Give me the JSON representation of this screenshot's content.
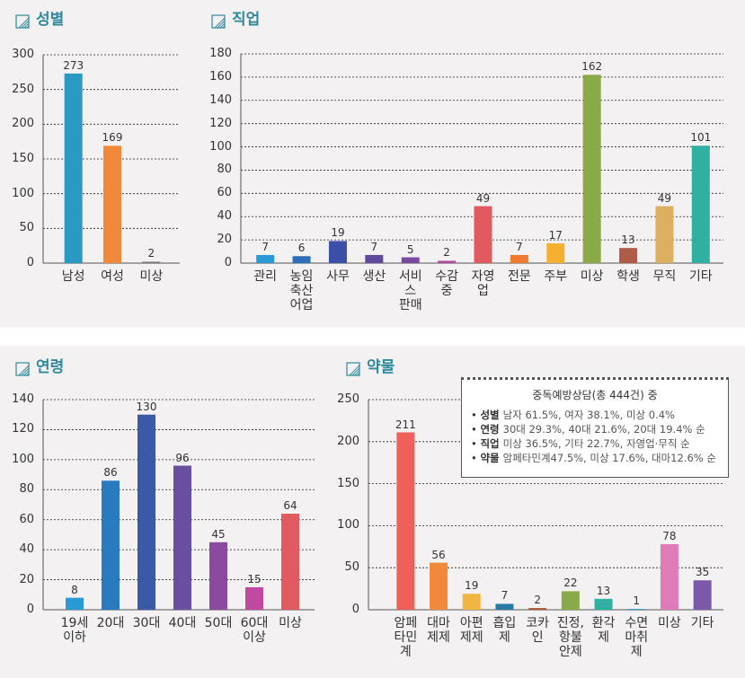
{
  "chart_data": [
    {
      "type": "bar",
      "title": "성별",
      "categories": [
        "남성",
        "여성",
        "미상"
      ],
      "values": [
        273,
        169,
        2
      ],
      "colors": [
        "#2a9ac4",
        "#f08a3a",
        "#7a7a7a"
      ],
      "ylim": [
        0,
        300
      ],
      "yticks": [
        0,
        50,
        100,
        150,
        200,
        250,
        300
      ],
      "grid": true
    },
    {
      "type": "bar",
      "title": "직업",
      "categories": [
        "관리",
        "농임\n축산\n어업",
        "사무",
        "생산",
        "서비\n스\n판매",
        "수감\n중",
        "자영\n업",
        "전문",
        "주부",
        "미상",
        "학생",
        "무직",
        "기타"
      ],
      "values": [
        7,
        6,
        19,
        7,
        5,
        2,
        49,
        7,
        17,
        162,
        13,
        49,
        101
      ],
      "colors": [
        "#2a9ad6",
        "#2a6fb8",
        "#3b4fa8",
        "#5f4a9e",
        "#7a4aa0",
        "#b04a9a",
        "#e05a60",
        "#f07a30",
        "#f5b030",
        "#8aaa48",
        "#b05a48",
        "#dcb060",
        "#30b0a0"
      ],
      "ylim": [
        0,
        180
      ],
      "yticks": [
        0,
        20,
        40,
        60,
        80,
        100,
        120,
        140,
        160,
        180
      ],
      "grid": true
    },
    {
      "type": "bar",
      "title": "연령",
      "categories": [
        "19세\n이하",
        "20대",
        "30대",
        "40대",
        "50대",
        "60대\n이상",
        "미상"
      ],
      "values": [
        8,
        86,
        130,
        96,
        45,
        15,
        64
      ],
      "colors": [
        "#2a9ad6",
        "#2a7ac0",
        "#3a5aa8",
        "#6a4ea0",
        "#8a4aa0",
        "#c04aa0",
        "#e05a60"
      ],
      "ylim": [
        0,
        140
      ],
      "yticks": [
        0,
        20,
        40,
        60,
        80,
        100,
        120,
        140
      ],
      "grid": true
    },
    {
      "type": "bar",
      "title": "약물",
      "categories": [
        "암페\n타민\n계",
        "대마\n제제",
        "아편\n제제",
        "흡입\n제",
        "코카\n인",
        "진정,\n항불\n안제",
        "환각\n제",
        "수면\n마취\n제",
        "미상",
        "기타"
      ],
      "values": [
        211,
        56,
        19,
        7,
        2,
        22,
        13,
        1,
        78,
        35
      ],
      "colors": [
        "#ee6058",
        "#f08a3a",
        "#f2b640",
        "#2a7aa8",
        "#b05030",
        "#88aa48",
        "#30b0a0",
        "#2a9ad6",
        "#e07ab8",
        "#7a5aa8"
      ],
      "ylim": [
        0,
        250
      ],
      "yticks": [
        0,
        50,
        100,
        150,
        200,
        250
      ],
      "grid": true,
      "annotation": {
        "title": "중독예방상담(총 444건) 중",
        "items": [
          {
            "label": "성별",
            "text": "남자 61.5%, 여자 38.1%, 미상 0.4%"
          },
          {
            "label": "연령",
            "text": "30대 29.3%, 40대 21.6%, 20대 19.4% 순"
          },
          {
            "label": "직업",
            "text": "미상 36.5%, 기타 22.7%, 자영업·무직 순"
          },
          {
            "label": "약물",
            "text": "암페타민계47.5%, 미상 17.6%, 대마12.6% 순"
          }
        ]
      }
    }
  ]
}
